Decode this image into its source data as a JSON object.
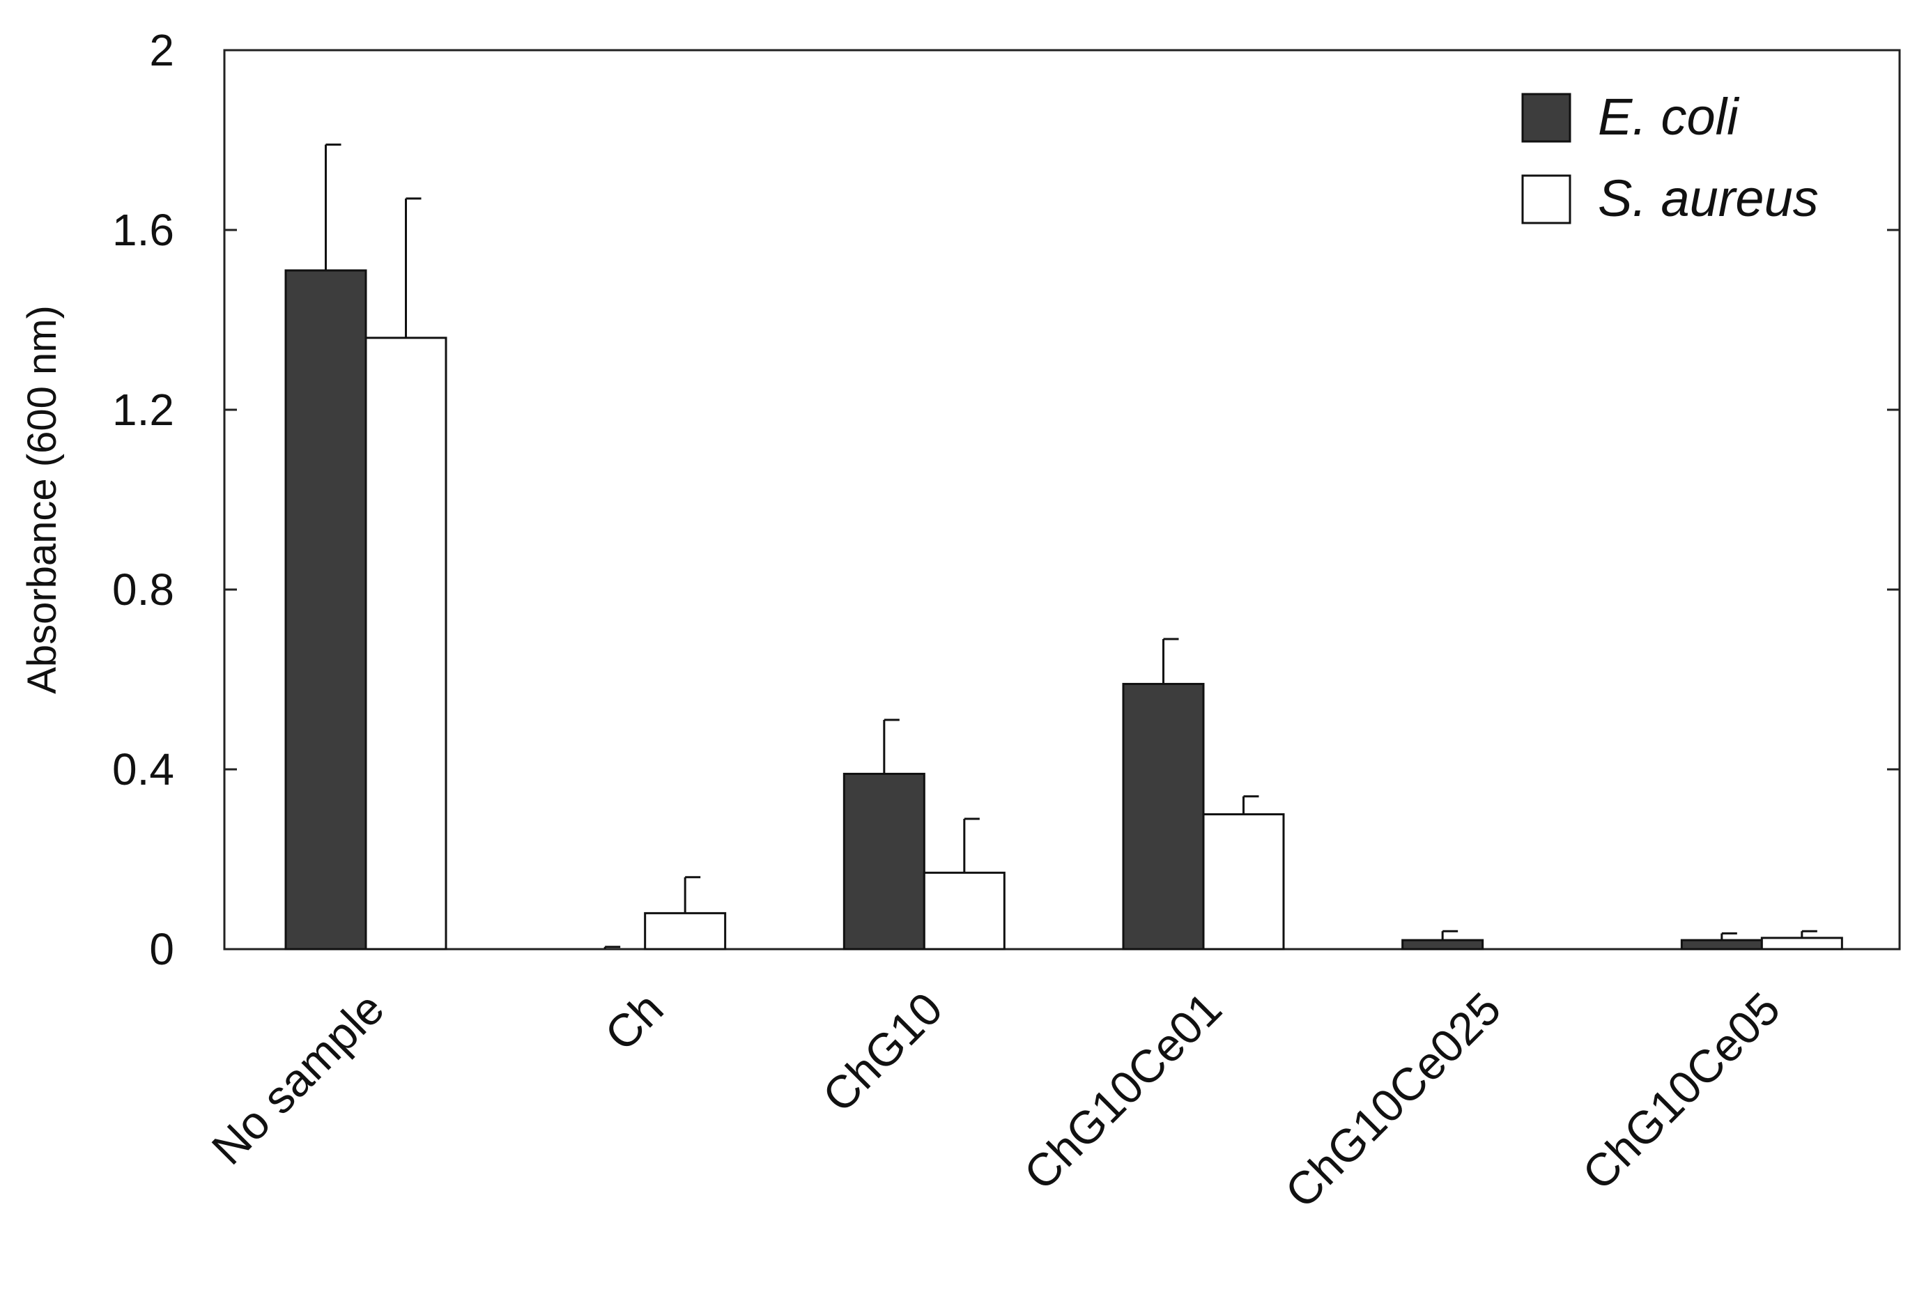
{
  "chart_data": {
    "type": "bar",
    "title": "",
    "xlabel": "",
    "ylabel": "Absorbance (600 nm)",
    "ylim": [
      0,
      2
    ],
    "yticks": [
      "0",
      "0.4",
      "0.8",
      "1.2",
      "1.6",
      "2"
    ],
    "ytick_values": [
      0,
      0.4,
      0.8,
      1.2,
      1.6,
      2
    ],
    "grid": false,
    "legend_position": "top-right",
    "categories": [
      "No sample",
      "Ch",
      "ChG10",
      "ChG10Ce01",
      "ChG10Ce025",
      "ChG10Ce05"
    ],
    "series": [
      {
        "name": "E. coli",
        "color": "#3d3d3d",
        "values": [
          1.51,
          0.0,
          0.39,
          0.59,
          0.02,
          0.02
        ],
        "errors": [
          0.28,
          0.005,
          0.12,
          0.1,
          0.02,
          0.015
        ]
      },
      {
        "name": "S. aureus",
        "color": "#ffffff",
        "values": [
          1.36,
          0.08,
          0.17,
          0.3,
          0.0,
          0.025
        ],
        "errors": [
          0.31,
          0.08,
          0.12,
          0.04,
          0.0,
          0.015
        ]
      }
    ]
  }
}
